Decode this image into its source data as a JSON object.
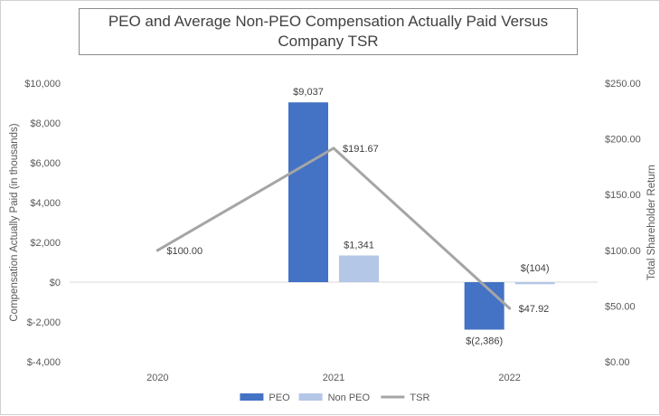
{
  "chart_data": {
    "type": "bar",
    "title": "PEO and Average Non-PEO Compensation Actually Paid Versus Company TSR",
    "categories": [
      "2020",
      "2021",
      "2022"
    ],
    "y_left": {
      "label": "Compensation Actually Paid (in thousands)",
      "range": [
        -4000,
        10000
      ],
      "ticks": [
        -4000,
        -2000,
        0,
        2000,
        4000,
        6000,
        8000,
        10000
      ],
      "tick_labels": [
        "$-4,000",
        "$-2,000",
        "$0",
        "$2,000",
        "$4,000",
        "$6,000",
        "$8,000",
        "$10,000"
      ]
    },
    "y_right": {
      "label": "Total Shareholder Return",
      "range": [
        0,
        250
      ],
      "ticks": [
        0,
        50,
        100,
        150,
        200,
        250
      ],
      "tick_labels": [
        "$0.00",
        "$50.00",
        "$100.00",
        "$150.00",
        "$200.00",
        "$250.00"
      ]
    },
    "series": [
      {
        "name": "PEO",
        "type": "bar",
        "axis": "left",
        "color": "#4472c4",
        "values": [
          null,
          9037,
          -2386
        ],
        "labels": [
          "",
          "$9,037",
          "$(2,386)"
        ]
      },
      {
        "name": "Non PEO",
        "type": "bar",
        "axis": "left",
        "color": "#b4c7e7",
        "values": [
          null,
          1341,
          -104
        ],
        "labels": [
          "",
          "$1,341",
          "$(104)"
        ]
      },
      {
        "name": "TSR",
        "type": "line",
        "axis": "right",
        "color": "#a5a5a5",
        "values": [
          100.0,
          191.67,
          47.92
        ],
        "labels": [
          "$100.00",
          "$191.67",
          "$47.92"
        ]
      }
    ],
    "legend": {
      "position": "bottom",
      "items": [
        "PEO",
        "Non PEO",
        "TSR"
      ]
    },
    "grid": false
  }
}
